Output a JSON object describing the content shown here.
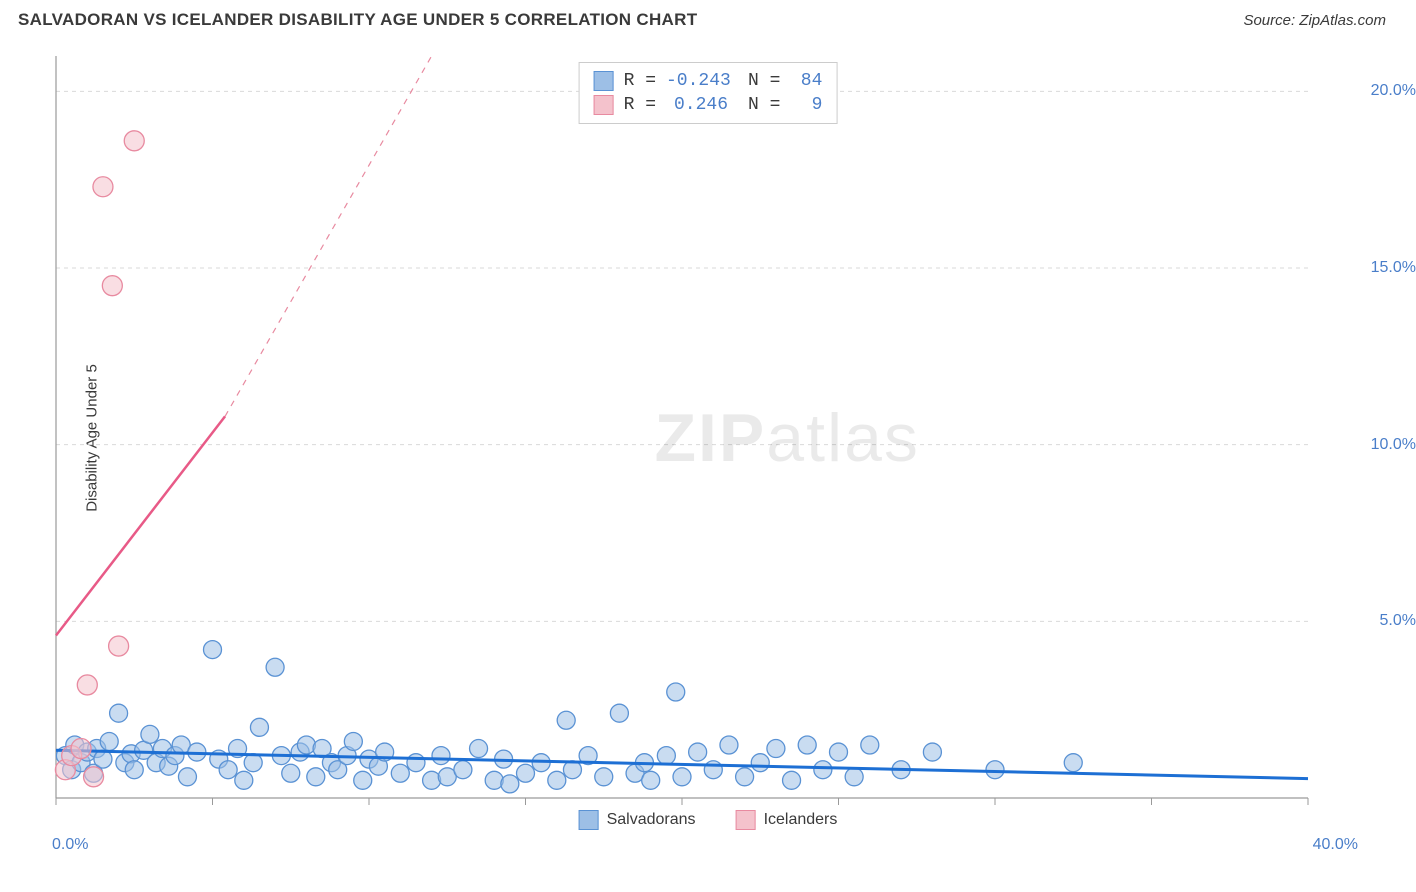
{
  "header": {
    "title": "SALVADORAN VS ICELANDER DISABILITY AGE UNDER 5 CORRELATION CHART",
    "source": "Source: ZipAtlas.com"
  },
  "y_axis_label": "Disability Age Under 5",
  "watermark": {
    "bold": "ZIP",
    "light": "atlas"
  },
  "chart": {
    "type": "scatter",
    "xlim": [
      0,
      40
    ],
    "ylim": [
      0,
      21
    ],
    "background_color": "#ffffff",
    "grid_color": "#d9d9d9",
    "grid_dash": "4,4",
    "axis_line_color": "#9a9a9a",
    "tick_color": "#9a9a9a",
    "y_gridlines": [
      5,
      10,
      15,
      20
    ],
    "y_tick_labels": [
      "5.0%",
      "10.0%",
      "15.0%",
      "20.0%"
    ],
    "x_tick_positions": [
      0,
      5,
      10,
      15,
      20,
      25,
      30,
      35,
      40
    ],
    "x_tick_labels": {
      "0": "0.0%",
      "40": "40.0%"
    },
    "series": [
      {
        "name": "Salvadorans",
        "color_fill": "#9dbfe6",
        "color_stroke": "#5a92d4",
        "fill_opacity": 0.55,
        "marker_radius": 9,
        "trend": {
          "x1": 0,
          "y1": 1.35,
          "x2": 40,
          "y2": 0.55,
          "color": "#1d6fd4",
          "width": 3
        },
        "points": [
          [
            0.3,
            1.2
          ],
          [
            0.5,
            0.8
          ],
          [
            0.6,
            1.5
          ],
          [
            0.8,
            1.0
          ],
          [
            1.0,
            1.3
          ],
          [
            1.2,
            0.7
          ],
          [
            1.3,
            1.4
          ],
          [
            1.5,
            1.1
          ],
          [
            1.7,
            1.6
          ],
          [
            2.0,
            2.4
          ],
          [
            2.2,
            1.0
          ],
          [
            2.4,
            1.25
          ],
          [
            2.5,
            0.8
          ],
          [
            2.8,
            1.35
          ],
          [
            3.0,
            1.8
          ],
          [
            3.2,
            1.0
          ],
          [
            3.4,
            1.4
          ],
          [
            3.6,
            0.9
          ],
          [
            3.8,
            1.2
          ],
          [
            4.0,
            1.5
          ],
          [
            4.2,
            0.6
          ],
          [
            4.5,
            1.3
          ],
          [
            5.0,
            4.2
          ],
          [
            5.2,
            1.1
          ],
          [
            5.5,
            0.8
          ],
          [
            5.8,
            1.4
          ],
          [
            6.0,
            0.5
          ],
          [
            6.3,
            1.0
          ],
          [
            6.5,
            2.0
          ],
          [
            7.0,
            3.7
          ],
          [
            7.2,
            1.2
          ],
          [
            7.5,
            0.7
          ],
          [
            7.8,
            1.3
          ],
          [
            8.0,
            1.5
          ],
          [
            8.3,
            0.6
          ],
          [
            8.5,
            1.4
          ],
          [
            8.8,
            1.0
          ],
          [
            9.0,
            0.8
          ],
          [
            9.3,
            1.2
          ],
          [
            9.5,
            1.6
          ],
          [
            9.8,
            0.5
          ],
          [
            10.0,
            1.1
          ],
          [
            10.3,
            0.9
          ],
          [
            10.5,
            1.3
          ],
          [
            11.0,
            0.7
          ],
          [
            11.5,
            1.0
          ],
          [
            12.0,
            0.5
          ],
          [
            12.3,
            1.2
          ],
          [
            12.5,
            0.6
          ],
          [
            13.0,
            0.8
          ],
          [
            13.5,
            1.4
          ],
          [
            14.0,
            0.5
          ],
          [
            14.3,
            1.1
          ],
          [
            14.5,
            0.4
          ],
          [
            15.0,
            0.7
          ],
          [
            15.5,
            1.0
          ],
          [
            16.0,
            0.5
          ],
          [
            16.3,
            2.2
          ],
          [
            16.5,
            0.8
          ],
          [
            17.0,
            1.2
          ],
          [
            17.5,
            0.6
          ],
          [
            18.0,
            2.4
          ],
          [
            18.5,
            0.7
          ],
          [
            18.8,
            1.0
          ],
          [
            19.0,
            0.5
          ],
          [
            19.5,
            1.2
          ],
          [
            19.8,
            3.0
          ],
          [
            20.0,
            0.6
          ],
          [
            20.5,
            1.3
          ],
          [
            21.0,
            0.8
          ],
          [
            21.5,
            1.5
          ],
          [
            22.0,
            0.6
          ],
          [
            22.5,
            1.0
          ],
          [
            23.0,
            1.4
          ],
          [
            23.5,
            0.5
          ],
          [
            24.0,
            1.5
          ],
          [
            24.5,
            0.8
          ],
          [
            25.0,
            1.3
          ],
          [
            25.5,
            0.6
          ],
          [
            26.0,
            1.5
          ],
          [
            27.0,
            0.8
          ],
          [
            28.0,
            1.3
          ],
          [
            30.0,
            0.8
          ],
          [
            32.5,
            1.0
          ]
        ]
      },
      {
        "name": "Icelanders",
        "color_fill": "#f4c2cc",
        "color_stroke": "#e88aa0",
        "fill_opacity": 0.55,
        "marker_radius": 10,
        "trend_solid": {
          "x1": 0,
          "y1": 4.6,
          "x2": 5.4,
          "y2": 10.8,
          "color": "#e85a87",
          "width": 2.5
        },
        "trend_dash": {
          "x1": 5.4,
          "y1": 10.8,
          "x2": 12.0,
          "y2": 21.0,
          "color": "#e88aa0",
          "width": 1.2,
          "dash": "6,6"
        },
        "points": [
          [
            0.3,
            0.8
          ],
          [
            0.5,
            1.2
          ],
          [
            0.8,
            1.4
          ],
          [
            1.0,
            3.2
          ],
          [
            1.2,
            0.6
          ],
          [
            1.8,
            14.5
          ],
          [
            1.5,
            17.3
          ],
          [
            2.5,
            18.6
          ],
          [
            2.0,
            4.3
          ]
        ]
      }
    ]
  },
  "stats_legend": {
    "rows": [
      {
        "swatch_fill": "#9dbfe6",
        "swatch_stroke": "#5a92d4",
        "r_label": "R =",
        "r_value": "-0.243",
        "n_label": "N =",
        "n_value": "84"
      },
      {
        "swatch_fill": "#f4c2cc",
        "swatch_stroke": "#e88aa0",
        "r_label": "R =",
        "r_value": "0.246",
        "n_label": "N =",
        "n_value": "9"
      }
    ]
  },
  "bottom_legend": {
    "items": [
      {
        "fill": "#9dbfe6",
        "stroke": "#5a92d4",
        "label": "Salvadorans"
      },
      {
        "fill": "#f4c2cc",
        "stroke": "#e88aa0",
        "label": "Icelanders"
      }
    ]
  }
}
